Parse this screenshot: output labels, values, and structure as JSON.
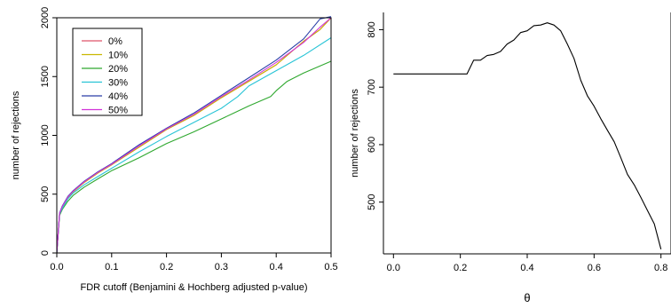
{
  "chart_data": [
    {
      "type": "line",
      "title": "",
      "xlabel": "FDR cutoff (Benjamini & Hochberg adjusted p-value)",
      "ylabel": "number of rejections",
      "xlim": [
        0,
        0.5
      ],
      "ylim": [
        0,
        2000
      ],
      "x_ticks": [
        "0.0",
        "0.1",
        "0.2",
        "0.3",
        "0.4",
        "0.5"
      ],
      "y_ticks": [
        "0",
        "500",
        "1000",
        "1500",
        "2000"
      ],
      "grid": false,
      "legend_position": "top-left",
      "series": [
        {
          "name": "0%",
          "color": "#DF536B",
          "x": [
            0,
            0.005,
            0.01,
            0.02,
            0.03,
            0.05,
            0.075,
            0.1,
            0.15,
            0.2,
            0.25,
            0.3,
            0.35,
            0.4,
            0.45,
            0.48,
            0.5
          ],
          "y": [
            0,
            330,
            390,
            470,
            520,
            600,
            680,
            750,
            900,
            1050,
            1170,
            1320,
            1460,
            1600,
            1800,
            1900,
            2000
          ]
        },
        {
          "name": "10%",
          "color": "#C9B800",
          "x": [
            0,
            0.005,
            0.01,
            0.02,
            0.03,
            0.05,
            0.075,
            0.1,
            0.15,
            0.2,
            0.25,
            0.3,
            0.35,
            0.4,
            0.45,
            0.48,
            0.5
          ],
          "y": [
            0,
            330,
            390,
            470,
            520,
            600,
            680,
            750,
            900,
            1050,
            1170,
            1320,
            1460,
            1600,
            1800,
            1900,
            2000
          ]
        },
        {
          "name": "20%",
          "color": "#2FA82F",
          "x": [
            0,
            0.005,
            0.01,
            0.02,
            0.03,
            0.05,
            0.075,
            0.1,
            0.15,
            0.2,
            0.25,
            0.3,
            0.35,
            0.39,
            0.4,
            0.42,
            0.45,
            0.5
          ],
          "y": [
            0,
            320,
            370,
            440,
            490,
            560,
            630,
            700,
            810,
            930,
            1030,
            1140,
            1250,
            1330,
            1380,
            1460,
            1530,
            1630
          ]
        },
        {
          "name": "30%",
          "color": "#28C4D6",
          "x": [
            0,
            0.005,
            0.01,
            0.02,
            0.03,
            0.05,
            0.075,
            0.1,
            0.15,
            0.2,
            0.25,
            0.3,
            0.33,
            0.35,
            0.4,
            0.45,
            0.5
          ],
          "y": [
            0,
            330,
            380,
            460,
            510,
            580,
            650,
            720,
            860,
            990,
            1110,
            1230,
            1330,
            1420,
            1550,
            1680,
            1830
          ]
        },
        {
          "name": "40%",
          "color": "#2A3FA8",
          "x": [
            0,
            0.005,
            0.01,
            0.02,
            0.03,
            0.05,
            0.075,
            0.1,
            0.15,
            0.2,
            0.25,
            0.3,
            0.35,
            0.4,
            0.45,
            0.48,
            0.5
          ],
          "y": [
            0,
            340,
            400,
            480,
            530,
            610,
            690,
            760,
            920,
            1060,
            1190,
            1340,
            1490,
            1640,
            1820,
            1990,
            2010
          ]
        },
        {
          "name": "50%",
          "color": "#D233D8",
          "x": [
            0,
            0.005,
            0.01,
            0.02,
            0.03,
            0.05,
            0.075,
            0.1,
            0.15,
            0.2,
            0.25,
            0.3,
            0.35,
            0.4,
            0.45,
            0.48,
            0.5
          ],
          "y": [
            0,
            335,
            395,
            475,
            525,
            605,
            685,
            755,
            910,
            1055,
            1180,
            1330,
            1470,
            1620,
            1790,
            1920,
            2000
          ]
        }
      ]
    },
    {
      "type": "line",
      "title": "",
      "xlabel": "θ",
      "ylabel": "number of rejections",
      "xlim": [
        -0.03,
        0.83
      ],
      "ylim": [
        410,
        830
      ],
      "x_ticks": [
        "0.0",
        "0.2",
        "0.4",
        "0.6",
        "0.8"
      ],
      "y_ticks": [
        "500",
        "600",
        "700",
        "800"
      ],
      "grid": false,
      "series": [
        {
          "name": "",
          "color": "#000000",
          "x": [
            0,
            0.1,
            0.2,
            0.22,
            0.24,
            0.26,
            0.28,
            0.3,
            0.32,
            0.34,
            0.36,
            0.38,
            0.4,
            0.42,
            0.44,
            0.46,
            0.48,
            0.5,
            0.52,
            0.54,
            0.56,
            0.58,
            0.6,
            0.62,
            0.64,
            0.66,
            0.68,
            0.7,
            0.72,
            0.74,
            0.76,
            0.78,
            0.8
          ],
          "y": [
            723,
            723,
            723,
            723,
            747,
            747,
            755,
            757,
            762,
            775,
            782,
            795,
            798,
            807,
            808,
            812,
            808,
            798,
            775,
            750,
            712,
            685,
            667,
            645,
            625,
            605,
            577,
            548,
            530,
            508,
            485,
            462,
            418
          ]
        }
      ]
    }
  ]
}
